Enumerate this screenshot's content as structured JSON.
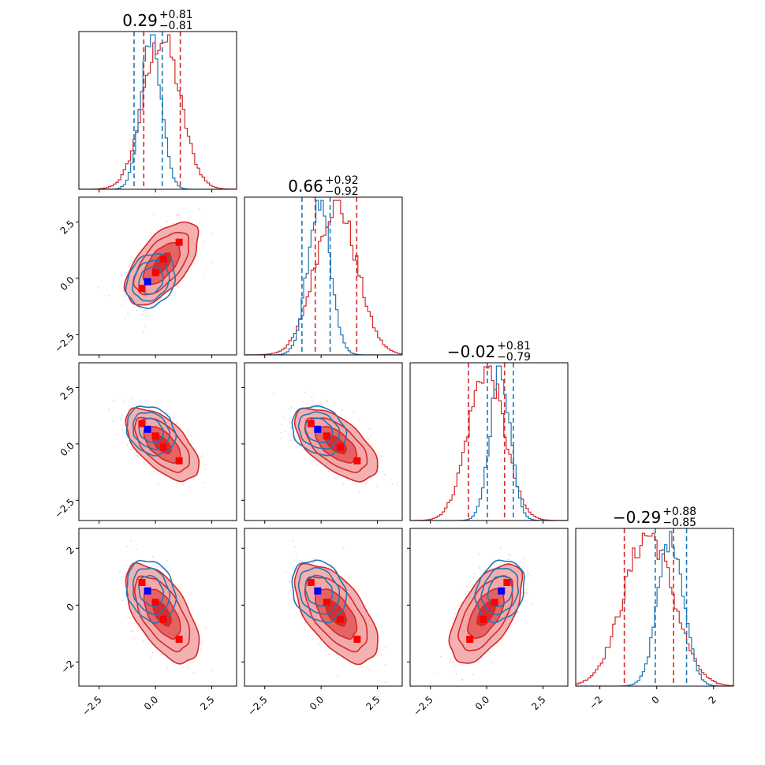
{
  "chart_data": {
    "type": "corner",
    "n_params": 4,
    "axis_range": [
      -3.4,
      3.6
    ],
    "range_last": [
      -2.85,
      2.7
    ],
    "hist_x_ticks": [
      "-2.5",
      "0.0",
      "2.5"
    ],
    "hist_x_tick_values": [
      -2.5,
      0.0,
      2.5
    ],
    "last_axis_ticks": [
      "-2",
      "0",
      "2"
    ],
    "last_axis_tick_values": [
      -2,
      0,
      2
    ],
    "titles": [
      {
        "value": "0.29",
        "plus": "+0.81",
        "minus": "−0.81"
      },
      {
        "value": "0.66",
        "plus": "+0.92",
        "minus": "−0.92"
      },
      {
        "value": "−0.02",
        "plus": "+0.81",
        "minus": "−0.79"
      },
      {
        "value": "−0.29",
        "plus": "+0.88",
        "minus": "−0.85"
      }
    ],
    "series": [
      {
        "color": "#d62728",
        "means": [
          0.29,
          0.66,
          -0.02,
          -0.29
        ],
        "sigmas": [
          0.81,
          0.92,
          0.8,
          0.87
        ],
        "quantile_lines": [
          [
            -0.52,
            1.1
          ],
          [
            -0.26,
            1.58
          ],
          [
            -0.81,
            0.79
          ],
          [
            -1.14,
            0.59
          ]
        ],
        "correlations": {
          "1-0": 0.6,
          "2-0": -0.6,
          "2-1": -0.6,
          "3-0": -0.6,
          "3-1": -0.6,
          "3-2": 0.6
        }
      },
      {
        "color": "#1f77b4",
        "means": [
          -0.2,
          -0.1,
          0.6,
          0.5
        ],
        "sigmas": [
          0.45,
          0.5,
          0.45,
          0.45
        ],
        "quantile_lines": [
          [
            -0.95,
            0.3
          ],
          [
            -0.85,
            0.4
          ],
          [
            0.03,
            1.18
          ],
          [
            -0.05,
            1.05
          ]
        ],
        "correlations": {
          "1-0": 0.2,
          "2-0": -0.2,
          "2-1": -0.2,
          "3-0": -0.2,
          "3-1": -0.2,
          "3-2": 0.2
        }
      }
    ],
    "markers": [
      {
        "color": "#ff0000",
        "values": [
          -0.6,
          -0.45,
          0.9,
          0.8
        ]
      },
      {
        "color": "#ff0000",
        "values": [
          0.0,
          0.25,
          0.35,
          0.1
        ]
      },
      {
        "color": "#ff0000",
        "values": [
          0.35,
          0.85,
          -0.15,
          -0.5
        ]
      },
      {
        "color": "#ff0000",
        "values": [
          1.05,
          1.6,
          -0.75,
          -1.2
        ]
      },
      {
        "color": "#0000ff",
        "values": [
          -0.35,
          -0.15,
          0.65,
          0.5
        ]
      }
    ],
    "contour_levels": [
      0.5,
      1.0,
      1.5,
      2.0
    ],
    "colors": {
      "fill_light": "#f3a8a8",
      "fill_mid": "#e25c5c",
      "fill_dark": "#d62728"
    }
  }
}
